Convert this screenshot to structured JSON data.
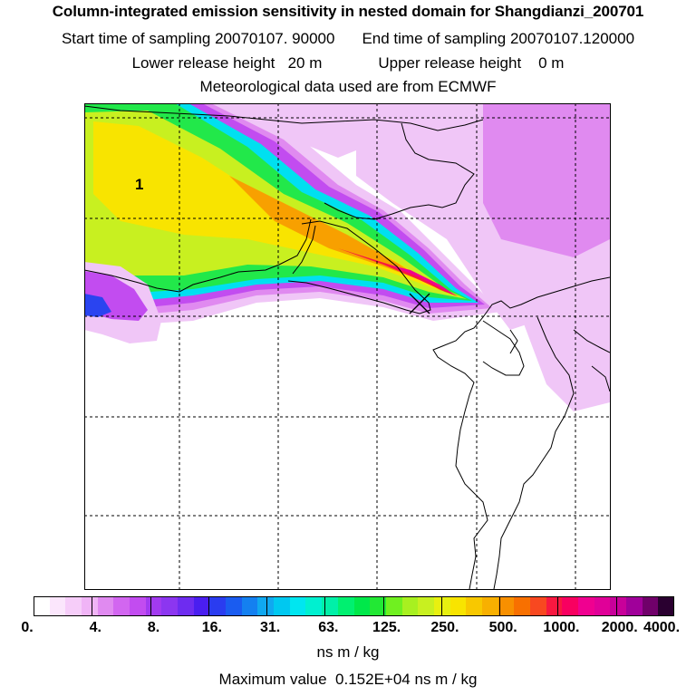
{
  "header": {
    "title": "Column-integrated emission sensitivity in nested domain for Shangdianzi_200701",
    "start_label": "Start time of sampling",
    "start_value": "20070107. 90000",
    "end_label": "End time of sampling",
    "end_value": "20070107.120000",
    "lower_label": "Lower release height",
    "lower_value": "20 m",
    "upper_label": "Upper release height",
    "upper_value": "0 m",
    "met_line": "Meteorological data used are from ECMWF"
  },
  "map": {
    "region_label": "1",
    "receptor_marker": "x-cross-icon",
    "colors": {
      "white": "#ffffff",
      "lavender": "#f0c6f7",
      "light_magenta": "#e08af0",
      "violet": "#c24cf0",
      "purple_blue": "#6e2cf0",
      "blue": "#2a44f0",
      "cyan": "#00e0f0",
      "green": "#22e84a",
      "yellow_green": "#c8f020",
      "yellow": "#f8e400",
      "orange": "#f8a000",
      "red": "#f81840",
      "deep_pink": "#f00090"
    }
  },
  "legend": {
    "tick_labels": [
      "0.",
      "4.",
      "8.",
      "16.",
      "31.",
      "63.",
      "125.",
      "250.",
      "500.",
      "1000.",
      "2000.",
      "4000."
    ],
    "colors": [
      "#ffffff",
      "#fbe6fc",
      "#f6cdf9",
      "#f0b4f6",
      "#e08af0",
      "#d266f0",
      "#c24cf0",
      "#a23af0",
      "#8c36f0",
      "#6e2cf0",
      "#4a1ef0",
      "#2a3cf0",
      "#1a5cf0",
      "#1480f0",
      "#10a8f0",
      "#00c8f0",
      "#00e6f0",
      "#00f0d0",
      "#00f0a8",
      "#00f070",
      "#00e84a",
      "#22e834",
      "#70f020",
      "#a8f020",
      "#c8f020",
      "#e8f010",
      "#f8e400",
      "#f8c800",
      "#f8b000",
      "#f89000",
      "#f87000",
      "#f84820",
      "#f81840",
      "#f80060",
      "#f00090",
      "#e00098",
      "#c8009a",
      "#a0009a",
      "#70006a",
      "#2a0030"
    ],
    "units": "ns m / kg",
    "max_label": "Maximum value",
    "max_value": "0.152E+04 ns m / kg"
  }
}
